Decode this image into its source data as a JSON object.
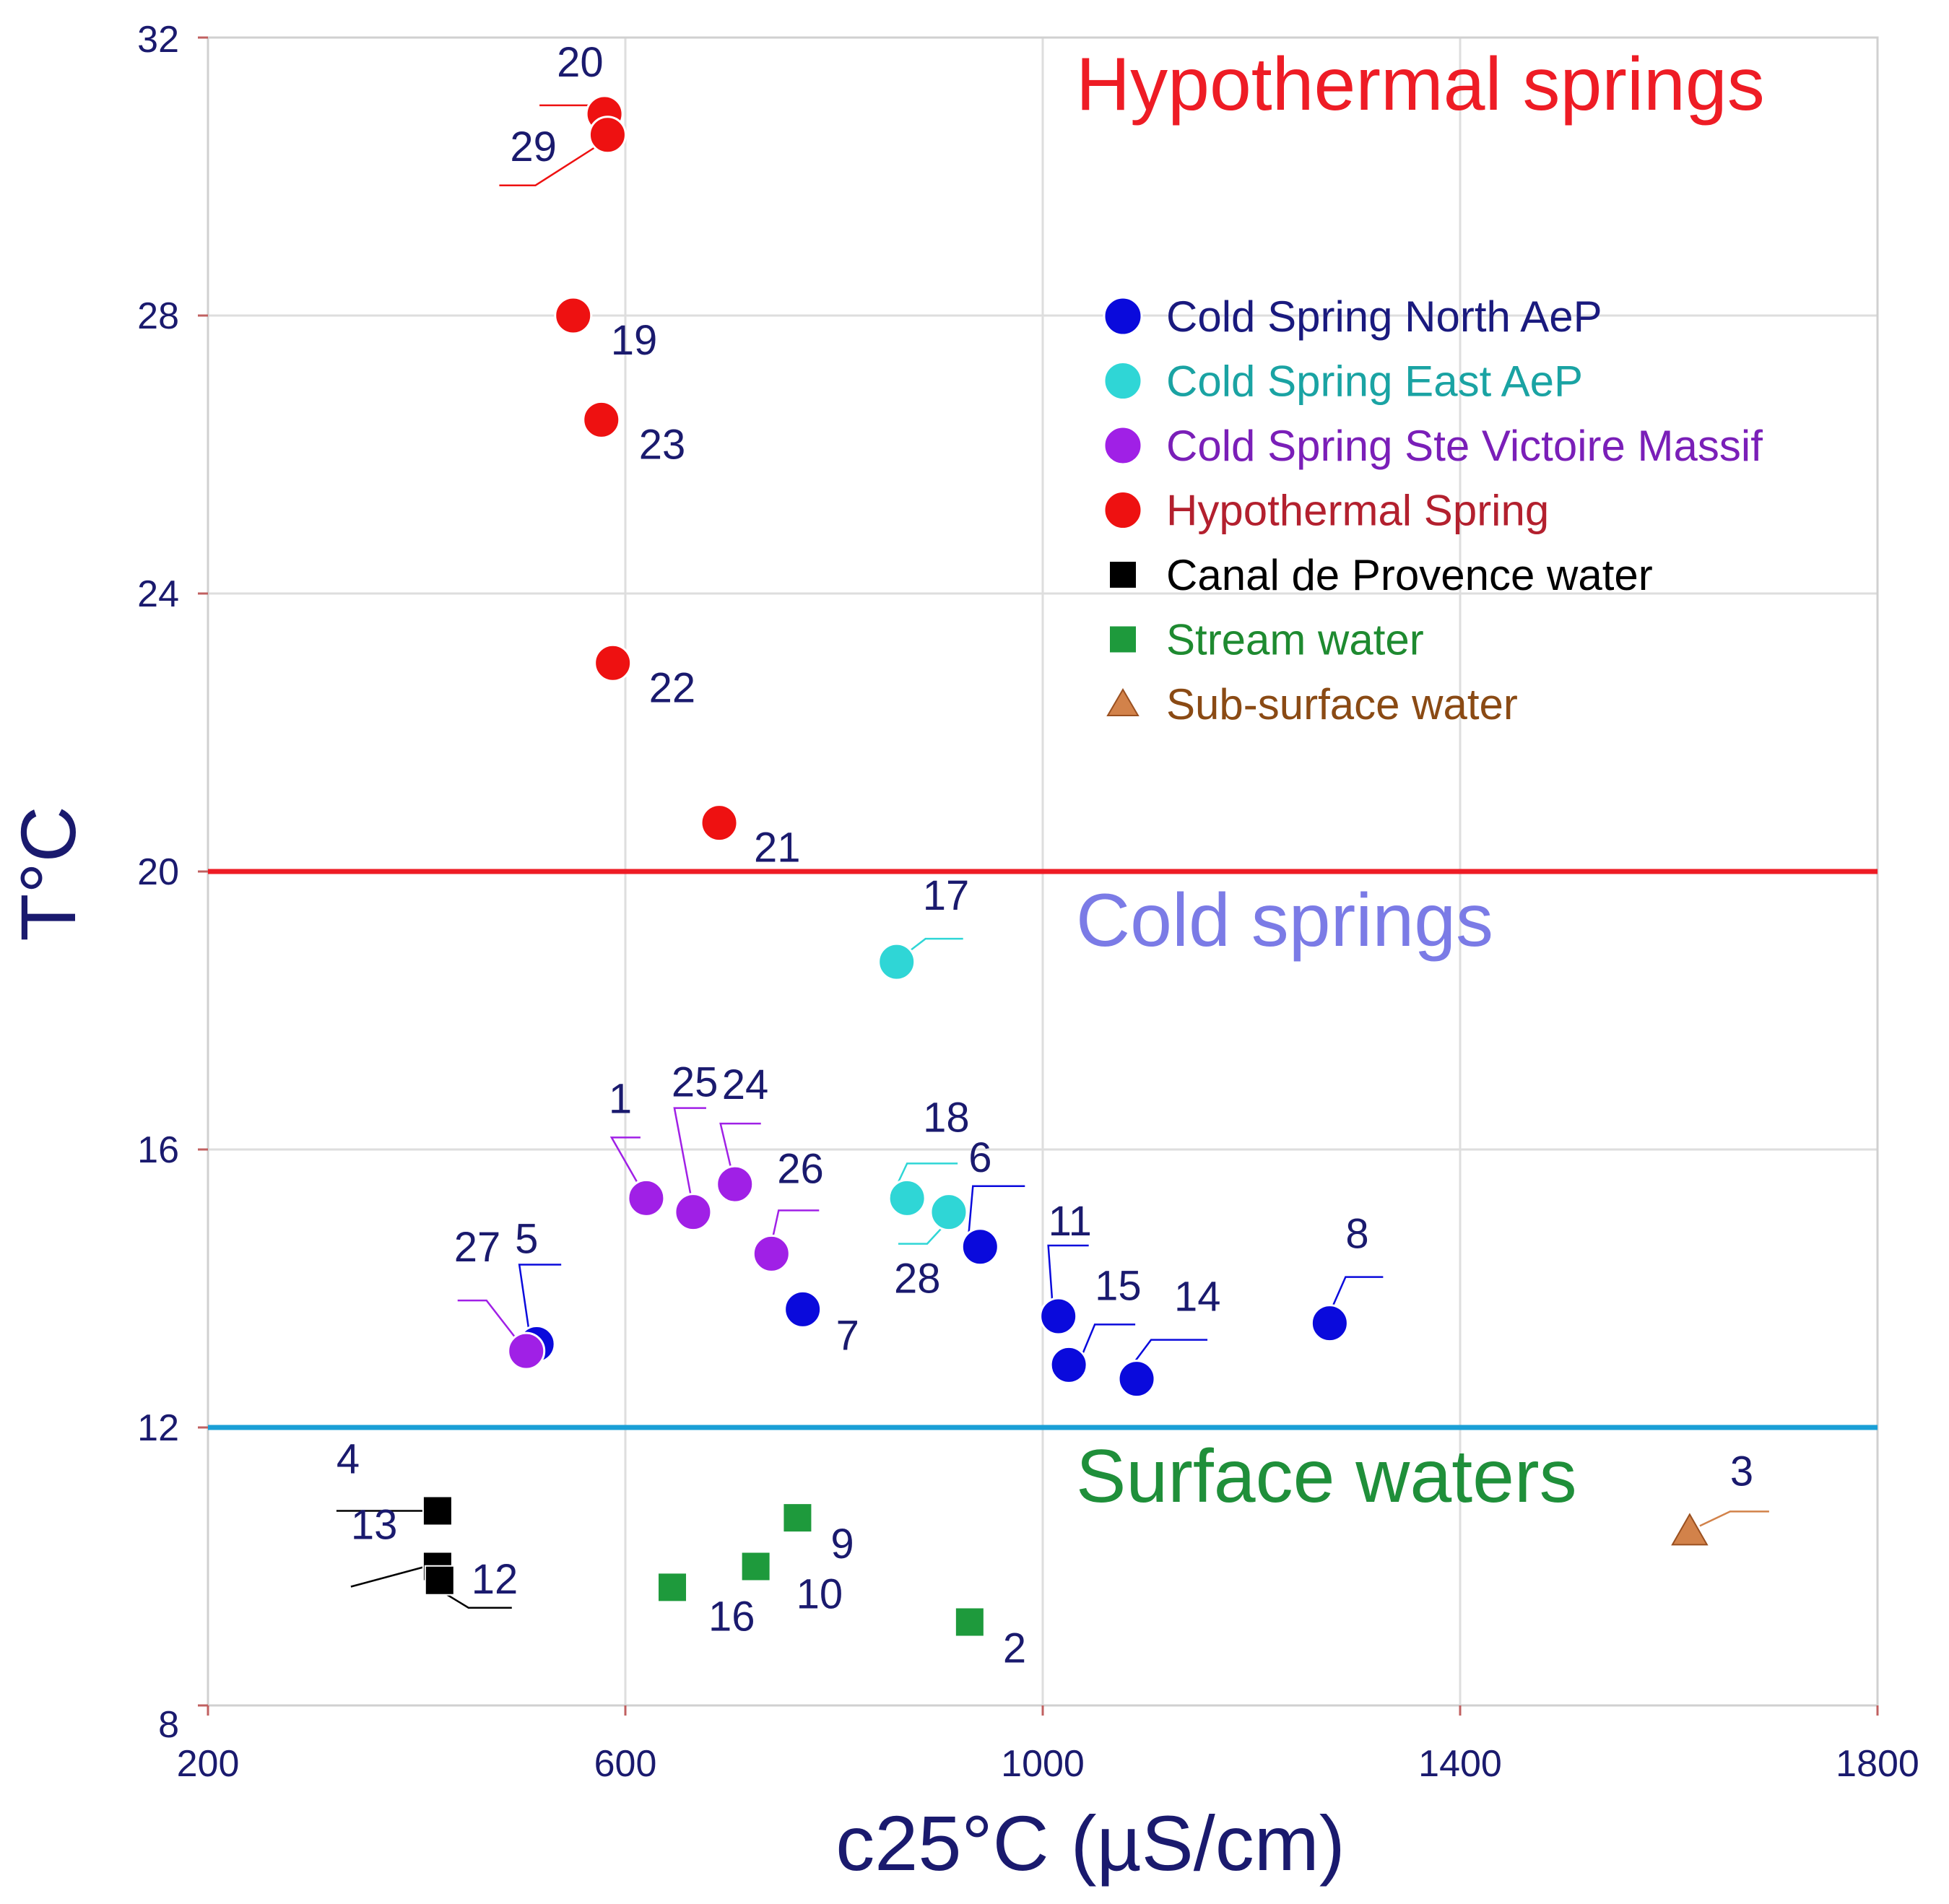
{
  "chart_data": {
    "type": "scatter",
    "xlabel": "c25°C (µS/cm)",
    "ylabel": "T°C",
    "xlim": [
      200,
      1800
    ],
    "ylim": [
      8,
      32
    ],
    "xticks": [
      200,
      600,
      1000,
      1400,
      1800
    ],
    "yticks": [
      8,
      12,
      16,
      20,
      24,
      28,
      32
    ],
    "grid": true,
    "thresholds": [
      {
        "name": "hypothermal-threshold",
        "y": 20,
        "color": "#ee1c25"
      },
      {
        "name": "surface-threshold",
        "y": 12,
        "color": "#1a9fd6"
      }
    ],
    "region_labels": [
      {
        "name": "hypothermal-region-label",
        "text": "Hypothermal springs",
        "color": "#ee1c25"
      },
      {
        "name": "cold-region-label",
        "text": "Cold springs",
        "color": "#7b7be6"
      },
      {
        "name": "surface-region-label",
        "text": "Surface waters",
        "color": "#1f8f3a"
      }
    ],
    "series": [
      {
        "name": "Cold Spring North AeP",
        "marker": "circle",
        "color": "#0a0adc",
        "text_color": "#1a1a7e",
        "points": [
          {
            "id": "5",
            "x": 515,
            "y": 13.2
          },
          {
            "id": "7",
            "x": 770,
            "y": 13.7
          },
          {
            "id": "6",
            "x": 940,
            "y": 14.6
          },
          {
            "id": "11",
            "x": 1015,
            "y": 13.6
          },
          {
            "id": "15",
            "x": 1025,
            "y": 12.9
          },
          {
            "id": "14",
            "x": 1090,
            "y": 12.7
          },
          {
            "id": "8",
            "x": 1275,
            "y": 13.5
          }
        ]
      },
      {
        "name": "Cold Spring East AeP",
        "marker": "circle",
        "color": "#2fd6d6",
        "text_color": "#1aa3a3",
        "points": [
          {
            "id": "17",
            "x": 860,
            "y": 18.7
          },
          {
            "id": "18",
            "x": 870,
            "y": 15.3
          },
          {
            "id": "28",
            "x": 910,
            "y": 15.1
          }
        ]
      },
      {
        "name": "Cold Spring Ste Victoire Massif",
        "marker": "circle",
        "color": "#a020e6",
        "text_color": "#7a1fb8",
        "points": [
          {
            "id": "27",
            "x": 505,
            "y": 13.1
          },
          {
            "id": "1",
            "x": 620,
            "y": 15.3
          },
          {
            "id": "25",
            "x": 665,
            "y": 15.1
          },
          {
            "id": "24",
            "x": 705,
            "y": 15.5
          },
          {
            "id": "26",
            "x": 740,
            "y": 14.5
          }
        ]
      },
      {
        "name": "Hypothermal Spring",
        "marker": "circle",
        "color": "#ee1111",
        "text_color": "#b3202e",
        "points": [
          {
            "id": "20",
            "x": 580,
            "y": 30.9
          },
          {
            "id": "29",
            "x": 583,
            "y": 30.6
          },
          {
            "id": "19",
            "x": 550,
            "y": 28.0
          },
          {
            "id": "23",
            "x": 577,
            "y": 26.5
          },
          {
            "id": "22",
            "x": 588,
            "y": 23.0
          },
          {
            "id": "21",
            "x": 690,
            "y": 20.7
          }
        ]
      },
      {
        "name": "Canal de Provence water",
        "marker": "square",
        "color": "#000000",
        "text_color": "#000000",
        "points": [
          {
            "id": "4",
            "x": 420,
            "y": 10.8
          },
          {
            "id": "13",
            "x": 420,
            "y": 10.0
          },
          {
            "id": "12",
            "x": 422,
            "y": 9.8
          }
        ]
      },
      {
        "name": "Stream water",
        "marker": "square",
        "color": "#1e9a3c",
        "text_color": "#1e8a30",
        "points": [
          {
            "id": "9",
            "x": 765,
            "y": 10.7
          },
          {
            "id": "10",
            "x": 725,
            "y": 10.0
          },
          {
            "id": "16",
            "x": 645,
            "y": 9.7
          },
          {
            "id": "2",
            "x": 930,
            "y": 9.2
          }
        ]
      },
      {
        "name": "Sub-surface water",
        "marker": "triangle",
        "color": "#d2824a",
        "text_color": "#8a4a14",
        "points": [
          {
            "id": "3",
            "x": 1620,
            "y": 10.5
          }
        ]
      }
    ]
  }
}
